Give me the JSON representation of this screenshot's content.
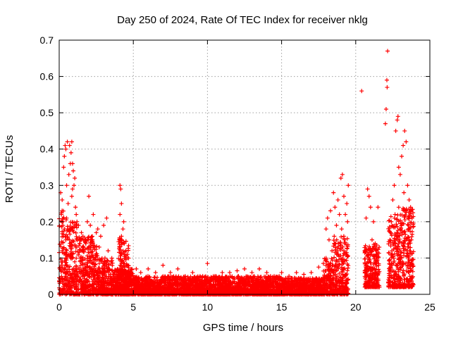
{
  "chart_data": {
    "type": "scatter",
    "title": "Day 250 of 2024, Rate Of TEC Index for receiver nklg",
    "xlabel": "GPS time / hours",
    "ylabel": "ROTI / TECUs",
    "xlim": [
      0,
      25
    ],
    "ylim": [
      0,
      0.7
    ],
    "xticks": [
      "0",
      "5",
      "10",
      "15",
      "20",
      "25"
    ],
    "yticks": [
      "0",
      "0.1",
      "0.2",
      "0.3",
      "0.4",
      "0.5",
      "0.6",
      "0.7"
    ],
    "grid": true,
    "marker": "+",
    "color": "#ff0000",
    "series": [
      {
        "name": "ROTI",
        "points": [
          [
            0.1,
            0.28
          ],
          [
            0.2,
            0.26
          ],
          [
            0.3,
            0.35
          ],
          [
            0.35,
            0.38
          ],
          [
            0.4,
            0.41
          ],
          [
            0.45,
            0.4
          ],
          [
            0.5,
            0.3
          ],
          [
            0.55,
            0.42
          ],
          [
            0.6,
            0.25
          ],
          [
            0.65,
            0.33
          ],
          [
            0.7,
            0.41
          ],
          [
            0.75,
            0.36
          ],
          [
            0.8,
            0.39
          ],
          [
            0.85,
            0.42
          ],
          [
            0.9,
            0.36
          ],
          [
            0.95,
            0.34
          ],
          [
            1.0,
            0.3
          ],
          [
            1.05,
            0.32
          ],
          [
            1.1,
            0.24
          ],
          [
            1.2,
            0.2
          ],
          [
            0.15,
            0.22
          ],
          [
            0.25,
            0.19
          ],
          [
            0.5,
            0.21
          ],
          [
            0.6,
            0.18
          ],
          [
            0.3,
            0.16
          ],
          [
            0.85,
            0.27
          ],
          [
            0.9,
            0.29
          ],
          [
            1.15,
            0.22
          ],
          [
            0.2,
            0.12
          ],
          [
            0.45,
            0.15
          ],
          [
            1.5,
            0.17
          ],
          [
            1.8,
            0.14
          ],
          [
            1.9,
            0.2
          ],
          [
            2.0,
            0.27
          ],
          [
            2.1,
            0.19
          ],
          [
            2.3,
            0.22
          ],
          [
            2.5,
            0.17
          ],
          [
            2.7,
            0.13
          ],
          [
            2.8,
            0.16
          ],
          [
            3.0,
            0.19
          ],
          [
            3.2,
            0.21
          ],
          [
            3.3,
            0.12
          ],
          [
            3.5,
            0.09
          ],
          [
            2.2,
            0.15
          ],
          [
            2.6,
            0.18
          ],
          [
            1.6,
            0.16
          ],
          [
            1.3,
            0.19
          ],
          [
            1.4,
            0.14
          ],
          [
            4.1,
            0.3
          ],
          [
            4.15,
            0.29
          ],
          [
            4.2,
            0.25
          ],
          [
            4.1,
            0.22
          ],
          [
            4.3,
            0.18
          ],
          [
            4.4,
            0.14
          ],
          [
            4.5,
            0.12
          ],
          [
            4.2,
            0.16
          ],
          [
            4.6,
            0.08
          ],
          [
            4.35,
            0.2
          ],
          [
            5.2,
            0.07
          ],
          [
            5.5,
            0.06
          ],
          [
            6.0,
            0.07
          ],
          [
            6.5,
            0.06
          ],
          [
            7.0,
            0.08
          ],
          [
            7.5,
            0.06
          ],
          [
            8.0,
            0.07
          ],
          [
            8.5,
            0.05
          ],
          [
            9.0,
            0.06
          ],
          [
            9.5,
            0.05
          ],
          [
            10.0,
            0.085
          ],
          [
            10.5,
            0.05
          ],
          [
            11.0,
            0.06
          ],
          [
            11.5,
            0.06
          ],
          [
            12.0,
            0.065
          ],
          [
            12.5,
            0.07
          ],
          [
            13.0,
            0.06
          ],
          [
            13.5,
            0.07
          ],
          [
            14.0,
            0.06
          ],
          [
            14.5,
            0.05
          ],
          [
            15.0,
            0.06
          ],
          [
            15.5,
            0.05
          ],
          [
            16.0,
            0.06
          ],
          [
            16.5,
            0.055
          ],
          [
            17.0,
            0.06
          ],
          [
            17.5,
            0.075
          ],
          [
            18.0,
            0.18
          ],
          [
            18.1,
            0.21
          ],
          [
            18.3,
            0.23
          ],
          [
            18.5,
            0.28
          ],
          [
            18.6,
            0.24
          ],
          [
            18.7,
            0.19
          ],
          [
            18.8,
            0.26
          ],
          [
            18.9,
            0.22
          ],
          [
            19.0,
            0.32
          ],
          [
            19.1,
            0.33
          ],
          [
            19.2,
            0.27
          ],
          [
            19.3,
            0.22
          ],
          [
            19.4,
            0.25
          ],
          [
            19.5,
            0.3
          ],
          [
            18.2,
            0.15
          ],
          [
            18.4,
            0.12
          ],
          [
            19.05,
            0.18
          ],
          [
            19.25,
            0.14
          ],
          [
            19.45,
            0.2
          ],
          [
            18.55,
            0.16
          ],
          [
            20.4,
            0.56
          ],
          [
            20.8,
            0.29
          ],
          [
            20.9,
            0.27
          ],
          [
            21.0,
            0.24
          ],
          [
            20.7,
            0.21
          ],
          [
            21.2,
            0.2
          ],
          [
            21.5,
            0.24
          ],
          [
            21.1,
            0.15
          ],
          [
            20.6,
            0.12
          ],
          [
            21.4,
            0.12
          ],
          [
            22.0,
            0.47
          ],
          [
            22.05,
            0.51
          ],
          [
            22.1,
            0.59
          ],
          [
            22.15,
            0.67
          ],
          [
            22.12,
            0.57
          ],
          [
            22.5,
            0.26
          ],
          [
            22.6,
            0.3
          ],
          [
            22.7,
            0.45
          ],
          [
            22.8,
            0.48
          ],
          [
            22.85,
            0.49
          ],
          [
            23.0,
            0.33
          ],
          [
            23.1,
            0.38
          ],
          [
            23.2,
            0.41
          ],
          [
            23.3,
            0.45
          ],
          [
            23.4,
            0.42
          ],
          [
            23.5,
            0.3
          ],
          [
            23.6,
            0.26
          ],
          [
            23.7,
            0.24
          ],
          [
            23.8,
            0.21
          ],
          [
            22.9,
            0.35
          ],
          [
            22.4,
            0.2
          ],
          [
            22.65,
            0.22
          ],
          [
            23.05,
            0.18
          ],
          [
            23.25,
            0.28
          ],
          [
            23.55,
            0.19
          ],
          [
            23.75,
            0.15
          ],
          [
            22.3,
            0.15
          ]
        ],
        "bands": [
          {
            "x": [
              0.0,
              0.6
            ],
            "y": [
              0.0,
              0.24
            ]
          },
          {
            "x": [
              0.6,
              1.2
            ],
            "y": [
              0.0,
              0.2
            ]
          },
          {
            "x": [
              1.2,
              2.6
            ],
            "y": [
              0.0,
              0.16
            ]
          },
          {
            "x": [
              2.6,
              3.6
            ],
            "y": [
              0.0,
              0.1
            ]
          },
          {
            "x": [
              3.6,
              5.0
            ],
            "y": [
              0.0,
              0.07
            ]
          },
          {
            "x": [
              4.0,
              4.7
            ],
            "y": [
              0.0,
              0.16
            ]
          },
          {
            "x": [
              5.0,
              10.0
            ],
            "y": [
              0.0,
              0.05
            ]
          },
          {
            "x": [
              10.0,
              15.0
            ],
            "y": [
              0.0,
              0.05
            ]
          },
          {
            "x": [
              15.0,
              17.8
            ],
            "y": [
              0.0,
              0.045
            ]
          },
          {
            "x": [
              17.8,
              18.5
            ],
            "y": [
              0.0,
              0.1
            ]
          },
          {
            "x": [
              18.5,
              19.5
            ],
            "y": [
              0.0,
              0.16
            ]
          },
          {
            "x": [
              20.6,
              21.6
            ],
            "y": [
              0.02,
              0.14
            ]
          },
          {
            "x": [
              22.2,
              22.9
            ],
            "y": [
              0.02,
              0.22
            ]
          },
          {
            "x": [
              22.9,
              23.9
            ],
            "y": [
              0.02,
              0.24
            ]
          }
        ]
      }
    ]
  }
}
